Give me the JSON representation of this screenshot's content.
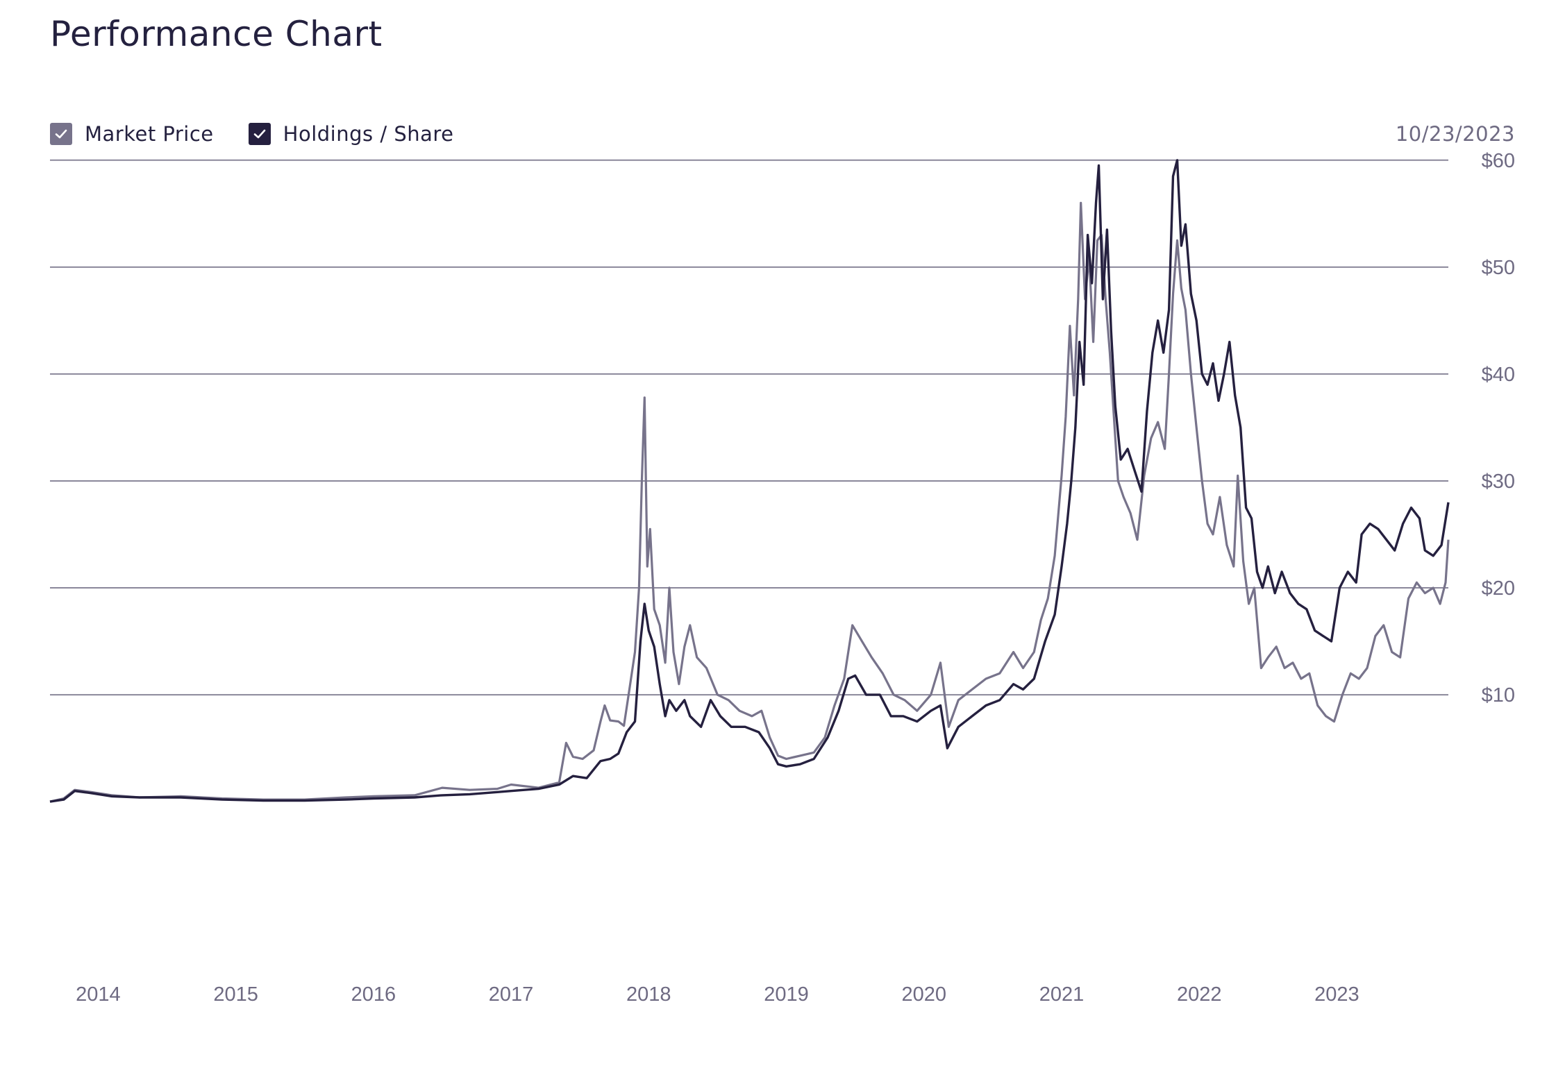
{
  "header": {
    "title": "Performance Chart",
    "date": "10/23/2023"
  },
  "legend": {
    "items": [
      {
        "label": "Market Price",
        "color": "#77738b",
        "checked": true
      },
      {
        "label": "Holdings / Share",
        "color": "#25203f",
        "checked": true
      }
    ]
  },
  "chart_data": {
    "type": "line",
    "title": "Performance Chart",
    "xlabel": "",
    "ylabel": "",
    "xlim": [
      2013.65,
      2023.81
    ],
    "ylim": [
      -12,
      62
    ],
    "grid": true,
    "y_ticks": [
      10,
      20,
      30,
      40,
      50,
      60
    ],
    "y_tick_labels": [
      "$10",
      "$20",
      "$30",
      "$40",
      "$50",
      "$60"
    ],
    "x_ticks": [
      2014,
      2015,
      2016,
      2017,
      2018,
      2019,
      2020,
      2021,
      2022,
      2023
    ],
    "x_tick_labels": [
      "2014",
      "2015",
      "2016",
      "2017",
      "2018",
      "2019",
      "2020",
      "2021",
      "2022",
      "2023"
    ],
    "series": [
      {
        "name": "Market Price",
        "color": "#77738b",
        "points": [
          [
            2013.65,
            0.0
          ],
          [
            2013.75,
            0.3
          ],
          [
            2013.83,
            1.1
          ],
          [
            2013.95,
            0.9
          ],
          [
            2014.1,
            0.6
          ],
          [
            2014.3,
            0.4
          ],
          [
            2014.6,
            0.5
          ],
          [
            2014.9,
            0.3
          ],
          [
            2015.2,
            0.2
          ],
          [
            2015.5,
            0.2
          ],
          [
            2015.8,
            0.4
          ],
          [
            2016.0,
            0.5
          ],
          [
            2016.3,
            0.6
          ],
          [
            2016.5,
            1.3
          ],
          [
            2016.7,
            1.1
          ],
          [
            2016.9,
            1.2
          ],
          [
            2017.0,
            1.6
          ],
          [
            2017.2,
            1.3
          ],
          [
            2017.35,
            1.8
          ],
          [
            2017.4,
            5.5
          ],
          [
            2017.45,
            4.2
          ],
          [
            2017.52,
            4.0
          ],
          [
            2017.6,
            4.8
          ],
          [
            2017.65,
            7.5
          ],
          [
            2017.68,
            9.0
          ],
          [
            2017.72,
            7.6
          ],
          [
            2017.78,
            7.5
          ],
          [
            2017.82,
            7.1
          ],
          [
            2017.86,
            10.5
          ],
          [
            2017.9,
            14.0
          ],
          [
            2017.93,
            20.0
          ],
          [
            2017.95,
            30.0
          ],
          [
            2017.97,
            37.8
          ],
          [
            2017.99,
            22.0
          ],
          [
            2018.01,
            25.5
          ],
          [
            2018.04,
            18.0
          ],
          [
            2018.08,
            16.5
          ],
          [
            2018.12,
            13.0
          ],
          [
            2018.15,
            20.0
          ],
          [
            2018.18,
            14.0
          ],
          [
            2018.22,
            11.0
          ],
          [
            2018.26,
            14.5
          ],
          [
            2018.3,
            16.5
          ],
          [
            2018.35,
            13.5
          ],
          [
            2018.42,
            12.5
          ],
          [
            2018.5,
            10.0
          ],
          [
            2018.58,
            9.5
          ],
          [
            2018.66,
            8.5
          ],
          [
            2018.75,
            8.0
          ],
          [
            2018.82,
            8.5
          ],
          [
            2018.88,
            6.0
          ],
          [
            2018.94,
            4.3
          ],
          [
            2019.0,
            4.0
          ],
          [
            2019.1,
            4.3
          ],
          [
            2019.2,
            4.6
          ],
          [
            2019.28,
            6.0
          ],
          [
            2019.35,
            9.0
          ],
          [
            2019.42,
            11.5
          ],
          [
            2019.48,
            16.5
          ],
          [
            2019.55,
            15.0
          ],
          [
            2019.62,
            13.5
          ],
          [
            2019.7,
            12.0
          ],
          [
            2019.78,
            10.0
          ],
          [
            2019.86,
            9.5
          ],
          [
            2019.95,
            8.5
          ],
          [
            2020.05,
            10.0
          ],
          [
            2020.12,
            13.0
          ],
          [
            2020.18,
            7.0
          ],
          [
            2020.25,
            9.5
          ],
          [
            2020.35,
            10.5
          ],
          [
            2020.45,
            11.5
          ],
          [
            2020.55,
            12.0
          ],
          [
            2020.65,
            14.0
          ],
          [
            2020.72,
            12.5
          ],
          [
            2020.8,
            14.0
          ],
          [
            2020.85,
            17.0
          ],
          [
            2020.9,
            19.0
          ],
          [
            2020.95,
            23.0
          ],
          [
            2021.0,
            30.5
          ],
          [
            2021.03,
            36.0
          ],
          [
            2021.06,
            44.5
          ],
          [
            2021.09,
            38.0
          ],
          [
            2021.12,
            47.0
          ],
          [
            2021.14,
            56.0
          ],
          [
            2021.17,
            47.0
          ],
          [
            2021.2,
            51.0
          ],
          [
            2021.23,
            43.0
          ],
          [
            2021.26,
            52.5
          ],
          [
            2021.29,
            53.0
          ],
          [
            2021.32,
            47.0
          ],
          [
            2021.35,
            42.0
          ],
          [
            2021.38,
            36.0
          ],
          [
            2021.41,
            30.0
          ],
          [
            2021.45,
            28.5
          ],
          [
            2021.5,
            27.0
          ],
          [
            2021.55,
            24.5
          ],
          [
            2021.6,
            30.5
          ],
          [
            2021.65,
            34.0
          ],
          [
            2021.7,
            35.5
          ],
          [
            2021.75,
            33.0
          ],
          [
            2021.78,
            40.0
          ],
          [
            2021.81,
            47.5
          ],
          [
            2021.84,
            52.5
          ],
          [
            2021.87,
            48.0
          ],
          [
            2021.9,
            46.0
          ],
          [
            2021.94,
            40.0
          ],
          [
            2021.98,
            35.0
          ],
          [
            2022.02,
            30.0
          ],
          [
            2022.06,
            26.0
          ],
          [
            2022.1,
            25.0
          ],
          [
            2022.15,
            28.5
          ],
          [
            2022.2,
            24.0
          ],
          [
            2022.25,
            22.0
          ],
          [
            2022.28,
            30.5
          ],
          [
            2022.32,
            22.5
          ],
          [
            2022.36,
            18.5
          ],
          [
            2022.4,
            20.0
          ],
          [
            2022.45,
            12.5
          ],
          [
            2022.5,
            13.5
          ],
          [
            2022.56,
            14.5
          ],
          [
            2022.62,
            12.5
          ],
          [
            2022.68,
            13.0
          ],
          [
            2022.74,
            11.5
          ],
          [
            2022.8,
            12.0
          ],
          [
            2022.86,
            9.0
          ],
          [
            2022.92,
            8.0
          ],
          [
            2022.98,
            7.5
          ],
          [
            2023.04,
            10.0
          ],
          [
            2023.1,
            12.0
          ],
          [
            2023.16,
            11.5
          ],
          [
            2023.22,
            12.5
          ],
          [
            2023.28,
            15.5
          ],
          [
            2023.34,
            16.5
          ],
          [
            2023.4,
            14.0
          ],
          [
            2023.46,
            13.5
          ],
          [
            2023.52,
            19.0
          ],
          [
            2023.58,
            20.5
          ],
          [
            2023.64,
            19.5
          ],
          [
            2023.7,
            20.0
          ],
          [
            2023.75,
            18.5
          ],
          [
            2023.79,
            20.5
          ],
          [
            2023.81,
            24.5
          ]
        ]
      },
      {
        "name": "Holdings / Share",
        "color": "#25203f",
        "points": [
          [
            2013.65,
            0.0
          ],
          [
            2013.75,
            0.2
          ],
          [
            2013.83,
            1.0
          ],
          [
            2013.95,
            0.8
          ],
          [
            2014.1,
            0.5
          ],
          [
            2014.3,
            0.4
          ],
          [
            2014.6,
            0.4
          ],
          [
            2014.9,
            0.2
          ],
          [
            2015.2,
            0.1
          ],
          [
            2015.5,
            0.1
          ],
          [
            2015.8,
            0.2
          ],
          [
            2016.0,
            0.3
          ],
          [
            2016.3,
            0.4
          ],
          [
            2016.5,
            0.6
          ],
          [
            2016.7,
            0.7
          ],
          [
            2016.9,
            0.9
          ],
          [
            2017.0,
            1.0
          ],
          [
            2017.2,
            1.2
          ],
          [
            2017.35,
            1.6
          ],
          [
            2017.45,
            2.4
          ],
          [
            2017.55,
            2.2
          ],
          [
            2017.65,
            3.8
          ],
          [
            2017.72,
            4.0
          ],
          [
            2017.78,
            4.5
          ],
          [
            2017.84,
            6.5
          ],
          [
            2017.9,
            7.5
          ],
          [
            2017.94,
            15.0
          ],
          [
            2017.97,
            18.5
          ],
          [
            2018.0,
            16.0
          ],
          [
            2018.04,
            14.5
          ],
          [
            2018.08,
            11.0
          ],
          [
            2018.12,
            8.0
          ],
          [
            2018.15,
            9.5
          ],
          [
            2018.2,
            8.5
          ],
          [
            2018.26,
            9.5
          ],
          [
            2018.3,
            8.0
          ],
          [
            2018.38,
            7.0
          ],
          [
            2018.45,
            9.5
          ],
          [
            2018.52,
            8.0
          ],
          [
            2018.6,
            7.0
          ],
          [
            2018.7,
            7.0
          ],
          [
            2018.8,
            6.5
          ],
          [
            2018.88,
            5.0
          ],
          [
            2018.94,
            3.5
          ],
          [
            2019.0,
            3.3
          ],
          [
            2019.1,
            3.5
          ],
          [
            2019.2,
            4.0
          ],
          [
            2019.3,
            6.0
          ],
          [
            2019.38,
            8.5
          ],
          [
            2019.45,
            11.5
          ],
          [
            2019.5,
            11.8
          ],
          [
            2019.58,
            10.0
          ],
          [
            2019.68,
            10.0
          ],
          [
            2019.76,
            8.0
          ],
          [
            2019.85,
            8.0
          ],
          [
            2019.95,
            7.5
          ],
          [
            2020.05,
            8.5
          ],
          [
            2020.12,
            9.0
          ],
          [
            2020.17,
            5.0
          ],
          [
            2020.25,
            7.0
          ],
          [
            2020.35,
            8.0
          ],
          [
            2020.45,
            9.0
          ],
          [
            2020.55,
            9.5
          ],
          [
            2020.65,
            11.0
          ],
          [
            2020.72,
            10.5
          ],
          [
            2020.8,
            11.5
          ],
          [
            2020.88,
            15.0
          ],
          [
            2020.95,
            17.5
          ],
          [
            2021.0,
            22.0
          ],
          [
            2021.04,
            26.0
          ],
          [
            2021.07,
            30.0
          ],
          [
            2021.1,
            35.0
          ],
          [
            2021.13,
            43.0
          ],
          [
            2021.16,
            39.0
          ],
          [
            2021.19,
            53.0
          ],
          [
            2021.22,
            48.5
          ],
          [
            2021.25,
            56.0
          ],
          [
            2021.27,
            59.5
          ],
          [
            2021.3,
            47.0
          ],
          [
            2021.33,
            53.5
          ],
          [
            2021.36,
            44.0
          ],
          [
            2021.39,
            37.0
          ],
          [
            2021.43,
            32.0
          ],
          [
            2021.48,
            33.0
          ],
          [
            2021.53,
            31.0
          ],
          [
            2021.58,
            29.0
          ],
          [
            2021.62,
            36.5
          ],
          [
            2021.66,
            42.0
          ],
          [
            2021.7,
            45.0
          ],
          [
            2021.74,
            42.0
          ],
          [
            2021.78,
            46.0
          ],
          [
            2021.81,
            58.5
          ],
          [
            2021.84,
            60.0
          ],
          [
            2021.87,
            52.0
          ],
          [
            2021.9,
            54.0
          ],
          [
            2021.94,
            47.5
          ],
          [
            2021.98,
            45.0
          ],
          [
            2022.02,
            40.0
          ],
          [
            2022.06,
            39.0
          ],
          [
            2022.1,
            41.0
          ],
          [
            2022.14,
            37.5
          ],
          [
            2022.18,
            40.0
          ],
          [
            2022.22,
            43.0
          ],
          [
            2022.26,
            38.0
          ],
          [
            2022.3,
            35.0
          ],
          [
            2022.34,
            27.5
          ],
          [
            2022.38,
            26.5
          ],
          [
            2022.42,
            21.5
          ],
          [
            2022.46,
            20.0
          ],
          [
            2022.5,
            22.0
          ],
          [
            2022.55,
            19.5
          ],
          [
            2022.6,
            21.5
          ],
          [
            2022.66,
            19.5
          ],
          [
            2022.72,
            18.5
          ],
          [
            2022.78,
            18.0
          ],
          [
            2022.84,
            16.0
          ],
          [
            2022.9,
            15.5
          ],
          [
            2022.96,
            15.0
          ],
          [
            2023.02,
            20.0
          ],
          [
            2023.08,
            21.5
          ],
          [
            2023.14,
            20.5
          ],
          [
            2023.18,
            25.0
          ],
          [
            2023.24,
            26.0
          ],
          [
            2023.3,
            25.5
          ],
          [
            2023.36,
            24.5
          ],
          [
            2023.42,
            23.5
          ],
          [
            2023.48,
            26.0
          ],
          [
            2023.54,
            27.5
          ],
          [
            2023.6,
            26.5
          ],
          [
            2023.64,
            23.5
          ],
          [
            2023.7,
            23.0
          ],
          [
            2023.76,
            24.0
          ],
          [
            2023.81,
            28.0
          ]
        ]
      }
    ]
  }
}
